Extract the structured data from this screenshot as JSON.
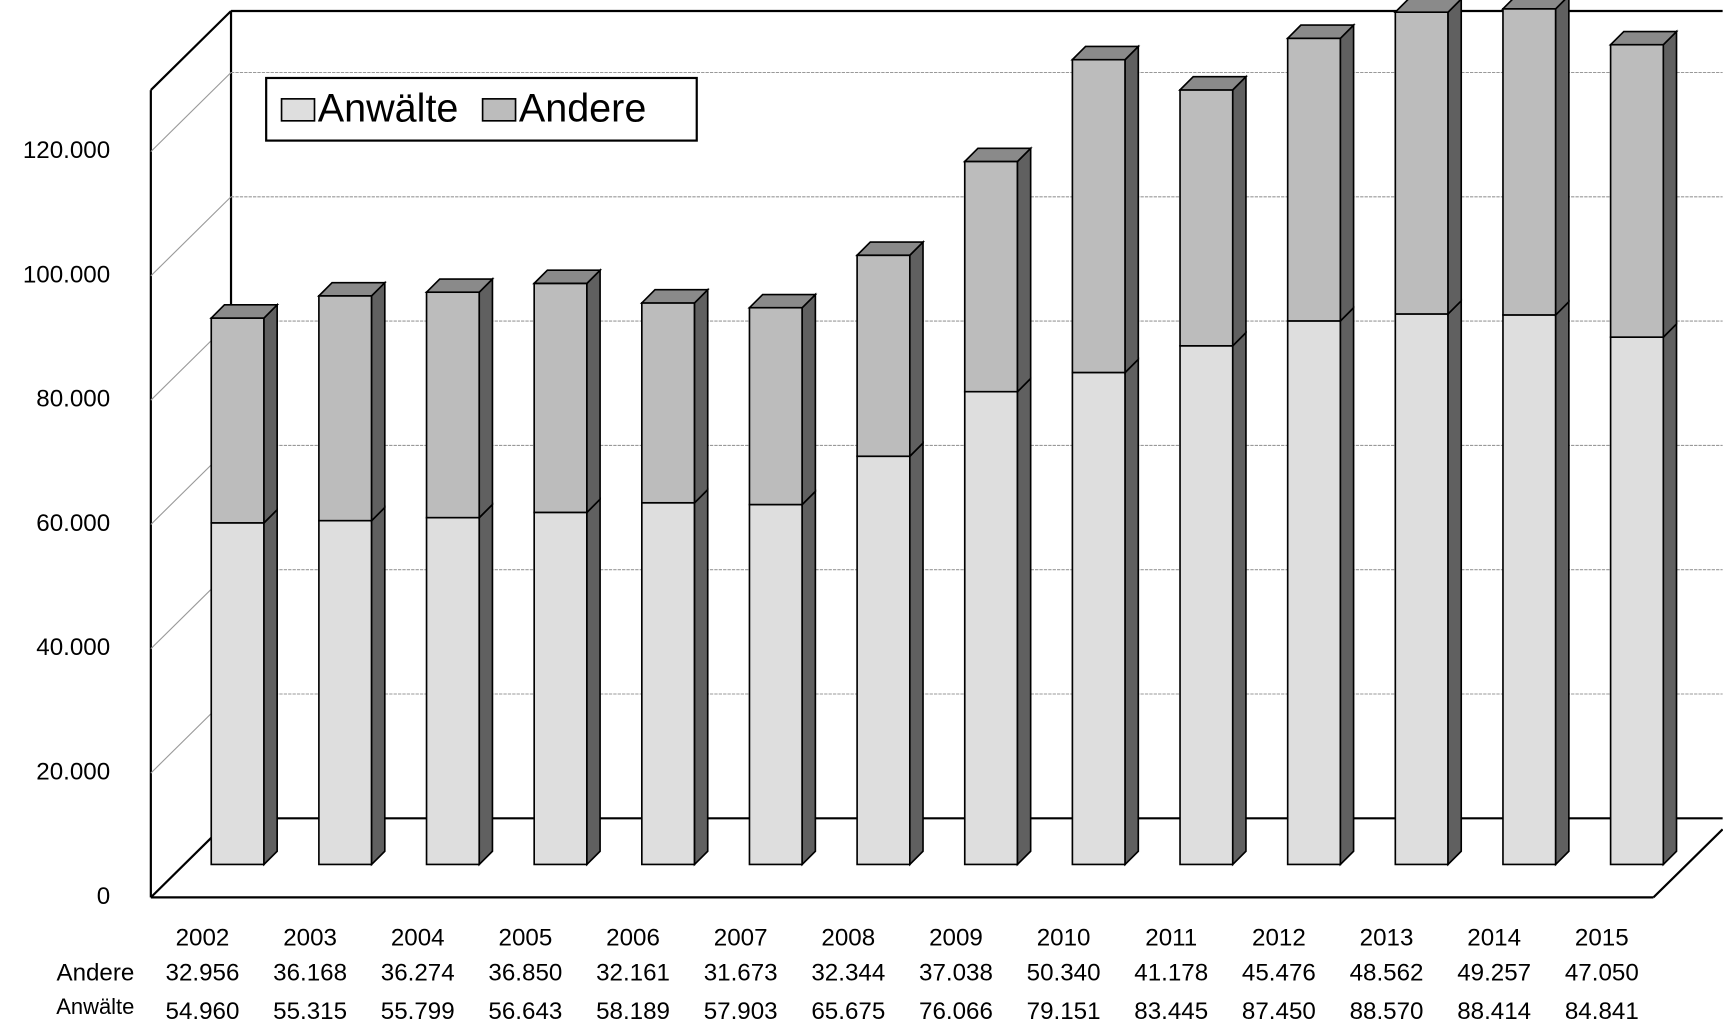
{
  "chart_data": {
    "type": "bar3d_stacked",
    "categories": [
      "2002",
      "2003",
      "2004",
      "2005",
      "2006",
      "2007",
      "2008",
      "2009",
      "2010",
      "2011",
      "2012",
      "2013",
      "2014",
      "2015"
    ],
    "series": [
      {
        "name": "Anwälte",
        "color": "#dedede",
        "values": [
          54960,
          55315,
          55799,
          56643,
          58189,
          57903,
          65675,
          76066,
          79151,
          83445,
          87450,
          88570,
          88414,
          84841
        ],
        "value_labels": [
          "54.960",
          "55.315",
          "55.799",
          "56.643",
          "58.189",
          "57.903",
          "65.675",
          "76.066",
          "79.151",
          "83.445",
          "87.450",
          "88.570",
          "88.414",
          "84.841"
        ]
      },
      {
        "name": "Andere",
        "color": "#bcbcbc",
        "values": [
          32956,
          36168,
          36274,
          36850,
          32161,
          31673,
          32344,
          37038,
          50340,
          41178,
          45476,
          48562,
          49257,
          47050
        ],
        "value_labels": [
          "32.956",
          "36.168",
          "36.274",
          "36.850",
          "32.161",
          "31.673",
          "32.344",
          "37.038",
          "50.340",
          "41.178",
          "45.476",
          "48.562",
          "49.257",
          "47.050"
        ]
      }
    ],
    "ylim": [
      0,
      130000
    ],
    "yticks": [
      0,
      {
        "value": 20000,
        "label": "20.000"
      },
      {
        "value": 40000,
        "label": "40.000"
      },
      {
        "value": 60000,
        "label": "60.000"
      },
      {
        "value": 80000,
        "label": "80.000"
      },
      {
        "value": 100000,
        "label": "100.000"
      },
      {
        "value": 120000,
        "label": "120.000"
      }
    ],
    "grid": true,
    "legend": "top-left"
  }
}
